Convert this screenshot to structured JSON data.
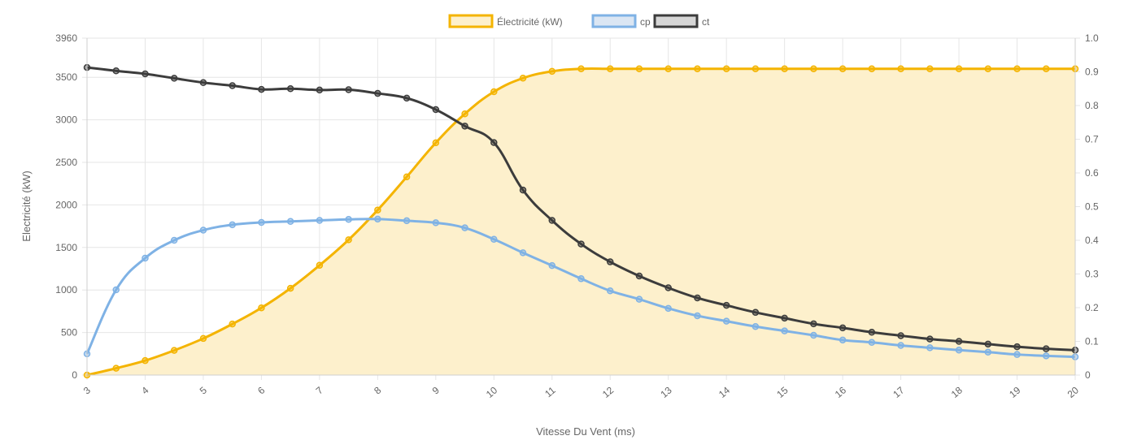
{
  "colors": {
    "electricity": "#f4b400",
    "electricity_fill": "#fdf0cc",
    "cp": "#7fb2e5",
    "ct": "#3c3c3c",
    "grid": "#e6e6e6",
    "text": "#666666"
  },
  "legend": [
    {
      "label": "Électricité (kW)",
      "color": "#f4b400",
      "fill": "#fdf0cc"
    },
    {
      "label": "cp",
      "color": "#7fb2e5",
      "fill": "#dbe6f3"
    },
    {
      "label": "ct",
      "color": "#3c3c3c",
      "fill": "#d6d6d6"
    }
  ],
  "chart_data": {
    "type": "line",
    "title": "",
    "xlabel": "Vitesse Du Vent (ms)",
    "ylabel": "Electricité (kW)",
    "y2label": "",
    "xlim": [
      3,
      20
    ],
    "ylim": [
      0,
      3960
    ],
    "y2lim": [
      0,
      1.0
    ],
    "x_ticks": [
      "3",
      "4",
      "5",
      "6",
      "7",
      "8",
      "9",
      "10",
      "11",
      "12",
      "13",
      "14",
      "15",
      "16",
      "17",
      "18",
      "19",
      "20"
    ],
    "y_ticks": [
      "0",
      "500",
      "1000",
      "1500",
      "2000",
      "2500",
      "3000",
      "3500",
      "3960"
    ],
    "y2_ticks": [
      "0",
      "0.1",
      "0.2",
      "0.3",
      "0.4",
      "0.5",
      "0.6",
      "0.7",
      "0.8",
      "0.9",
      "1.0"
    ],
    "legend_position": "top",
    "grid": true,
    "x": [
      3,
      3.5,
      4,
      4.5,
      5,
      5.5,
      6,
      6.5,
      7,
      7.5,
      8,
      8.5,
      9,
      9.5,
      10,
      10.5,
      11,
      11.5,
      12,
      12.5,
      13,
      13.5,
      14,
      14.5,
      15,
      15.5,
      16,
      16.5,
      17,
      17.5,
      18,
      18.5,
      19,
      19.5,
      20
    ],
    "series": [
      {
        "name": "Électricité (kW)",
        "axis": "left",
        "fill": true,
        "values": [
          0,
          80,
          170,
          290,
          430,
          600,
          790,
          1020,
          1290,
          1590,
          1940,
          2330,
          2730,
          3070,
          3330,
          3490,
          3570,
          3600,
          3600,
          3600,
          3600,
          3600,
          3600,
          3600,
          3600,
          3600,
          3600,
          3600,
          3600,
          3600,
          3600,
          3600,
          3600,
          3600,
          3600
        ]
      },
      {
        "name": "cp",
        "axis": "right",
        "fill": false,
        "values": [
          0.063,
          0.253,
          0.347,
          0.4,
          0.43,
          0.446,
          0.453,
          0.456,
          0.459,
          0.462,
          0.463,
          0.458,
          0.452,
          0.437,
          0.403,
          0.363,
          0.325,
          0.286,
          0.25,
          0.225,
          0.198,
          0.176,
          0.16,
          0.144,
          0.131,
          0.118,
          0.104,
          0.097,
          0.088,
          0.081,
          0.074,
          0.068,
          0.061,
          0.057,
          0.054
        ]
      },
      {
        "name": "ct",
        "axis": "right",
        "fill": false,
        "values": [
          0.913,
          0.903,
          0.894,
          0.881,
          0.868,
          0.859,
          0.848,
          0.85,
          0.846,
          0.847,
          0.836,
          0.822,
          0.788,
          0.739,
          0.69,
          0.549,
          0.459,
          0.389,
          0.336,
          0.294,
          0.259,
          0.229,
          0.207,
          0.186,
          0.169,
          0.152,
          0.14,
          0.127,
          0.117,
          0.107,
          0.1,
          0.092,
          0.084,
          0.078,
          0.074
        ]
      }
    ]
  }
}
